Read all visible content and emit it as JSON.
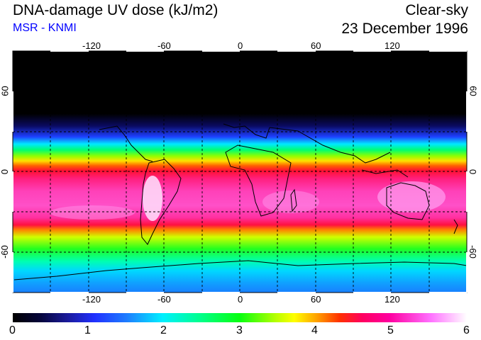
{
  "header": {
    "title": "DNA-damage UV dose (kJ/m2)",
    "subtitle": "MSR - KNMI",
    "condition": "Clear-sky",
    "date": "23 December 1996"
  },
  "map": {
    "lon_labels": [
      "-120",
      "-60",
      "0",
      "60",
      "120"
    ],
    "lat_labels_left": [
      "60",
      "0",
      "-60"
    ],
    "lat_labels_right": [
      "60",
      "0",
      "-60"
    ],
    "lon_range": [
      -180,
      180
    ],
    "lat_range": [
      -90,
      90
    ],
    "grid_spacing_deg": 30
  },
  "colorbar": {
    "tick_labels": [
      "0",
      "1",
      "2",
      "3",
      "4",
      "5",
      "6"
    ],
    "min": 0,
    "max": 6
  }
}
